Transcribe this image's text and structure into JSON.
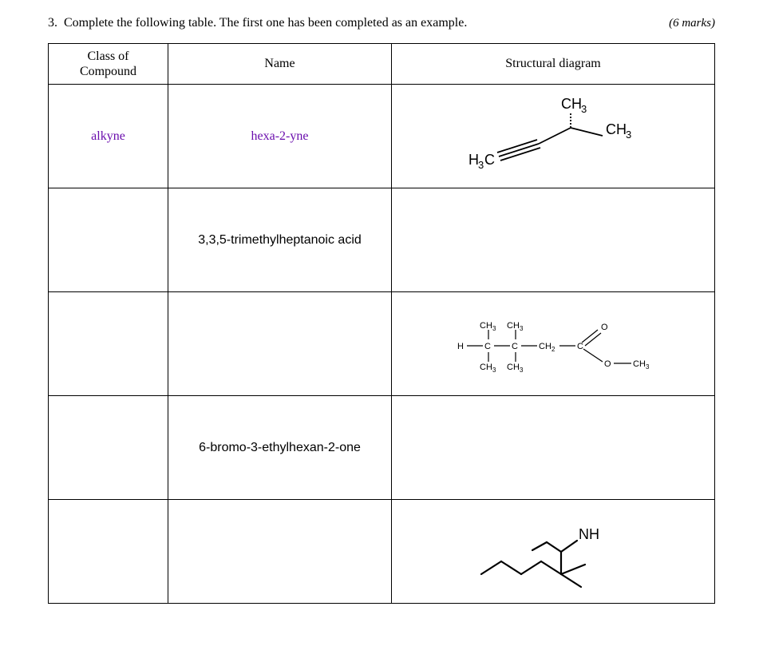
{
  "question": {
    "number": "3.",
    "prompt": "Complete the following table.  The first one has been completed as an example.",
    "marks": "(6 marks)"
  },
  "headers": {
    "class": "Class of Compound",
    "name": "Name",
    "diagram": "Structural diagram"
  },
  "rows": [
    {
      "class": "alkyne",
      "class_color": "#6a0dad",
      "name": "hexa-2-yne",
      "name_color": "#6a0dad",
      "name_font": "Georgia, serif",
      "diagram_type": "alkyne",
      "diagram": {
        "labels": {
          "left": "H",
          "left_sub": "3",
          "left_c": "C",
          "top": "CH",
          "top_sub": "3",
          "right": "CH",
          "right_sub": "3"
        },
        "line_color": "#000000",
        "line_width": 1.8,
        "fontsize_main": 18,
        "fontsize_sub": 13
      }
    },
    {
      "class": "",
      "name": "3,3,5-trimethylheptanoic acid",
      "name_color": "#000000",
      "name_font": "Arial, Helvetica, sans-serif",
      "diagram_type": "empty"
    },
    {
      "class": "",
      "name": "",
      "diagram_type": "ester",
      "diagram": {
        "labels": {
          "H": "H",
          "C": "C",
          "CH3": "CH",
          "CH3_sub": "3",
          "CH2": "CH",
          "CH2_sub": "2",
          "O": "O",
          "O_dash": "O",
          "right_CH3": "CH",
          "right_CH3_sub": "3"
        },
        "line_color": "#000000",
        "line_width": 1.2,
        "fontsize_main": 11,
        "fontsize_sub": 8
      }
    },
    {
      "class": "",
      "name": "6-bromo-3-ethylhexan-2-one",
      "name_color": "#000000",
      "name_font": "Arial, Helvetica, sans-serif",
      "diagram_type": "empty"
    },
    {
      "class": "",
      "name": "",
      "diagram_type": "imine",
      "diagram": {
        "labels": {
          "NH": "NH"
        },
        "line_color": "#000000",
        "line_width": 2.2,
        "fontsize_main": 18
      }
    }
  ]
}
